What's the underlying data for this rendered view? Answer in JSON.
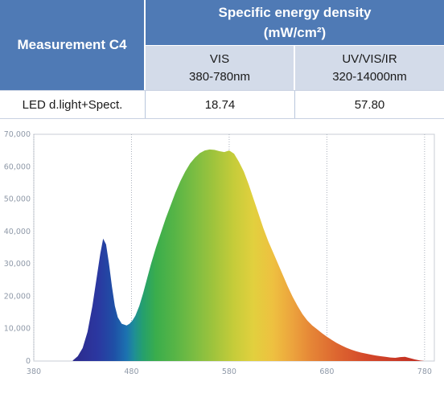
{
  "table": {
    "measurement_header": "Measurement C4",
    "spec_header_line1": "Specific energy density",
    "spec_header_line2": "(mW/cm²)",
    "col1_line1": "VIS",
    "col1_line2": "380-780nm",
    "col2_line1": "UV/VIS/IR",
    "col2_line2": "320-14000nm",
    "row_label": "LED d.light+Spect.",
    "row_value1": "18.74",
    "row_value2": "57.80"
  },
  "colors": {
    "header_bg": "#4f7ab5",
    "subheader_bg": "#d3dbe9"
  },
  "chart_data": {
    "type": "area",
    "title": "",
    "xlabel": "",
    "ylabel": "",
    "xlim": [
      380,
      790
    ],
    "ylim": [
      0,
      70000
    ],
    "x_ticks": [
      "380",
      "480",
      "580",
      "680",
      "780"
    ],
    "x_tick_values": [
      380,
      480,
      580,
      680,
      780
    ],
    "y_ticks": [
      "0",
      "10,000",
      "20,000",
      "30,000",
      "40,000",
      "50,000",
      "60,000",
      "70,000"
    ],
    "y_tick_values": [
      0,
      10000,
      20000,
      30000,
      40000,
      50000,
      60000,
      70000
    ],
    "grid": "dotted vertical lines at x tick values",
    "fill": "spectral color gradient by wavelength",
    "x": [
      420,
      425,
      430,
      435,
      440,
      445,
      448,
      451,
      454,
      457,
      460,
      463,
      466,
      470,
      475,
      478,
      481,
      484,
      488,
      492,
      496,
      500,
      505,
      510,
      515,
      520,
      525,
      530,
      535,
      540,
      545,
      550,
      555,
      560,
      565,
      570,
      575,
      580,
      585,
      590,
      595,
      600,
      605,
      610,
      615,
      620,
      625,
      630,
      635,
      640,
      645,
      650,
      655,
      660,
      665,
      670,
      675,
      680,
      685,
      690,
      695,
      700,
      705,
      710,
      715,
      720,
      725,
      730,
      735,
      740,
      745,
      750,
      755,
      760,
      765,
      770,
      775,
      780
    ],
    "y": [
      200,
      1500,
      4000,
      9000,
      17000,
      27000,
      33000,
      37800,
      36000,
      30000,
      23000,
      17000,
      13500,
      11500,
      11000,
      11500,
      12500,
      14000,
      17000,
      21000,
      25500,
      30000,
      35000,
      39500,
      44000,
      48000,
      52000,
      55500,
      58500,
      61000,
      62800,
      64200,
      65000,
      65300,
      65200,
      64800,
      64500,
      65000,
      64000,
      61500,
      58500,
      54500,
      50000,
      45500,
      41000,
      37000,
      33500,
      30000,
      26500,
      23000,
      19800,
      17000,
      14500,
      12500,
      11000,
      9800,
      8600,
      7500,
      6500,
      5600,
      4800,
      4100,
      3500,
      3000,
      2600,
      2300,
      2000,
      1700,
      1500,
      1300,
      1100,
      1000,
      1200,
      1300,
      900,
      500,
      200,
      0
    ]
  }
}
